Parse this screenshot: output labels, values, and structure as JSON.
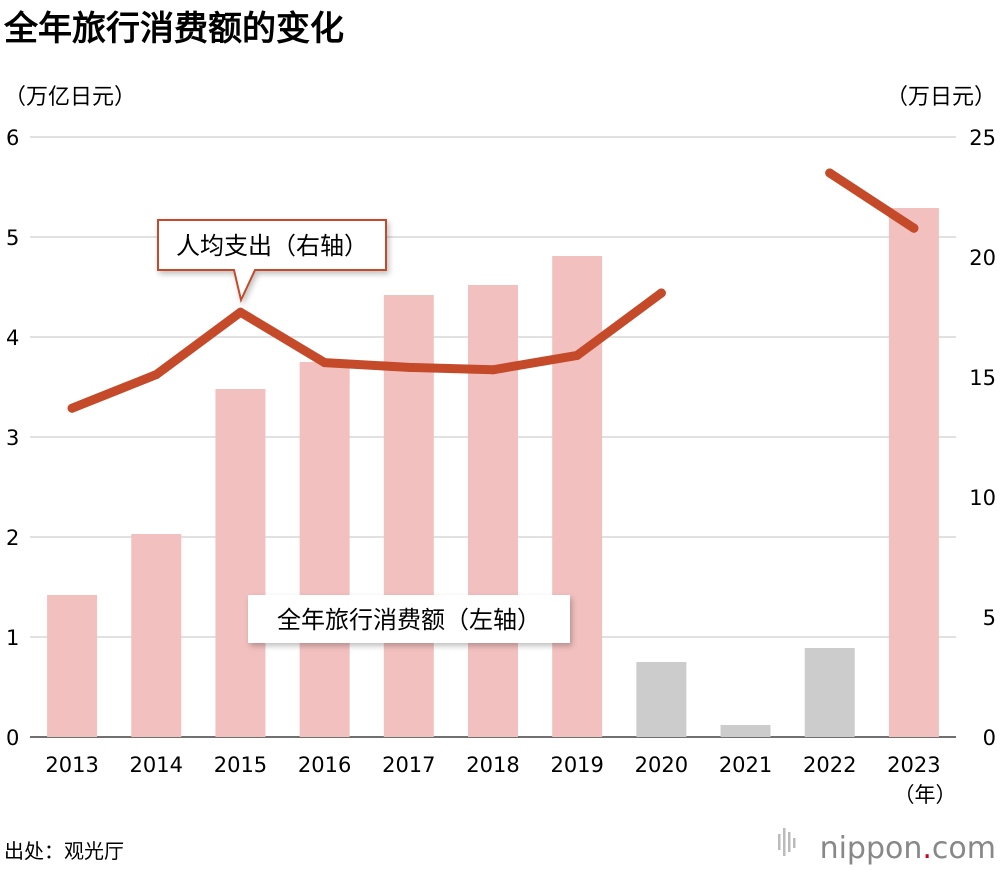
{
  "chart_data": {
    "type": "bar",
    "title": "全年旅行消费额的变化",
    "x_unit": "（年）",
    "categories": [
      "2013",
      "2014",
      "2015",
      "2016",
      "2017",
      "2018",
      "2019",
      "2020",
      "2021",
      "2022",
      "2023"
    ],
    "y_left": {
      "unit": "（万亿日元）",
      "ylim": [
        0,
        6
      ],
      "ticks": [
        0,
        1,
        2,
        3,
        4,
        5,
        6
      ]
    },
    "y_right": {
      "unit": "（万日元）",
      "ylim": [
        0,
        25
      ],
      "ticks": [
        0,
        5,
        10,
        15,
        20,
        25
      ]
    },
    "grid": true,
    "series": [
      {
        "name": "全年旅行消费额（左轴）",
        "type": "bar",
        "axis": "left",
        "values": [
          1.42,
          2.03,
          3.48,
          3.75,
          4.42,
          4.52,
          4.81,
          0.75,
          0.12,
          0.89,
          5.29
        ],
        "colors": [
          "#f2c0bf",
          "#f2c0bf",
          "#f2c0bf",
          "#f2c0bf",
          "#f2c0bf",
          "#f2c0bf",
          "#f2c0bf",
          "#cccccc",
          "#cccccc",
          "#cccccc",
          "#f2c0bf"
        ]
      },
      {
        "name": "人均支出（右轴）",
        "type": "line",
        "axis": "right",
        "color": "#c44a2a",
        "values": [
          13.7,
          15.1,
          17.7,
          15.6,
          15.4,
          15.3,
          15.9,
          18.5,
          null,
          23.5,
          21.2
        ]
      }
    ]
  },
  "source": "出处：观光厅",
  "brand": {
    "name": "nippon",
    "dot": ".",
    "tld": "com",
    "dot_color": "#d0021b"
  }
}
